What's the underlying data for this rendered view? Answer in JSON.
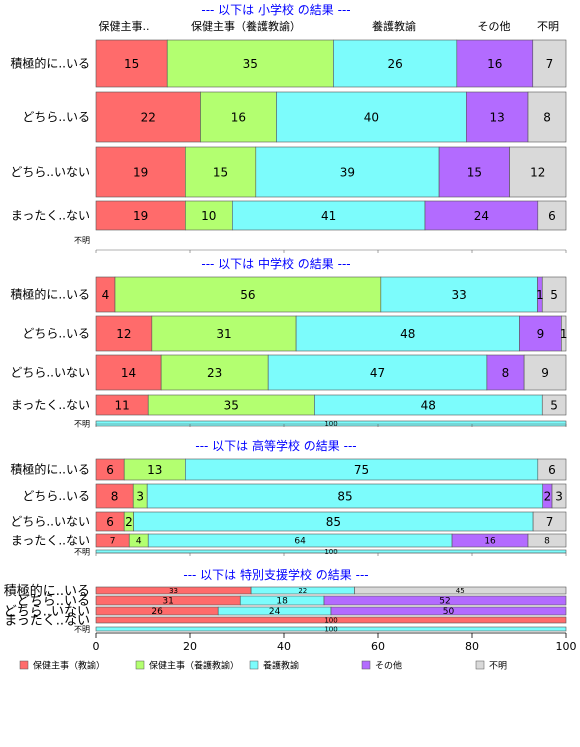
{
  "colors": {
    "background": "#ffffff",
    "title_text": "#0000ff",
    "axis": "#666666",
    "bar_border": "#555555"
  },
  "chart_data": {
    "type": "bar",
    "orientation": "horizontal",
    "stacked": true,
    "xlim": [
      0,
      100
    ],
    "x_ticks": [
      0,
      20,
      40,
      60,
      80,
      100
    ],
    "legend_position": "bottom",
    "series": [
      {
        "name": "保健主事（教諭）",
        "color": "#ff6b6b"
      },
      {
        "name": "保健主事（養護教諭）",
        "color": "#b3ff70"
      },
      {
        "name": "養護教諭",
        "color": "#7cfcfc"
      },
      {
        "name": "その他",
        "color": "#b36bff"
      },
      {
        "name": "不明",
        "color": "#d9d9d9"
      }
    ],
    "column_headers": [
      "保健主事..",
      "保健主事（養護教諭）",
      "養護教諭",
      "その他",
      "不明"
    ],
    "panels": [
      {
        "title": "--- 以下は 小学校 の結果 ---",
        "rows": [
          {
            "label": "積極的に..いる",
            "values": [
              15,
              35,
              26,
              16,
              7
            ],
            "labels": [
              "15",
              "35",
              "26",
              "16",
              "7"
            ]
          },
          {
            "label": "どちら..いる",
            "values": [
              22,
              16,
              40,
              13,
              8
            ],
            "labels": [
              "22",
              "16",
              "40",
              "13",
              "8"
            ]
          },
          {
            "label": "どちら..いない",
            "values": [
              19,
              15,
              39,
              15,
              12
            ],
            "labels": [
              "19",
              "15",
              "39",
              "15",
              "12"
            ]
          },
          {
            "label": "まったく..ない",
            "values": [
              19,
              10,
              41,
              24,
              6
            ],
            "labels": [
              "19",
              "10",
              "41",
              "24",
              "6"
            ]
          },
          {
            "label": "不明",
            "values": [
              0,
              0,
              0,
              0,
              0
            ],
            "labels": [
              "",
              "",
              "",
              "",
              ""
            ]
          }
        ]
      },
      {
        "title": "--- 以下は 中学校 の結果 ---",
        "rows": [
          {
            "label": "積極的に..いる",
            "values": [
              4,
              56,
              33,
              1,
              5
            ],
            "labels": [
              "4",
              "56",
              "33",
              "1",
              "5"
            ]
          },
          {
            "label": "どちら..いる",
            "values": [
              12,
              31,
              48,
              9,
              1
            ],
            "labels": [
              "12",
              "31",
              "48",
              "9",
              "1"
            ]
          },
          {
            "label": "どちら..いない",
            "values": [
              14,
              23,
              47,
              8,
              9
            ],
            "labels": [
              "14",
              "23",
              "47",
              "8",
              "9"
            ]
          },
          {
            "label": "まったく..ない",
            "values": [
              11,
              35,
              48,
              0,
              5
            ],
            "labels": [
              "11",
              "35",
              "48",
              "",
              "5"
            ]
          },
          {
            "label": "不明",
            "values": [
              0,
              0,
              100,
              0,
              0
            ],
            "labels": [
              "",
              "",
              "100",
              "",
              ""
            ]
          }
        ]
      },
      {
        "title": "--- 以下は 高等学校 の結果 ---",
        "rows": [
          {
            "label": "積極的に..いる",
            "values": [
              6,
              13,
              75,
              0,
              6
            ],
            "labels": [
              "6",
              "13",
              "75",
              "",
              "6"
            ]
          },
          {
            "label": "どちら..いる",
            "values": [
              8,
              3,
              85,
              2,
              3
            ],
            "labels": [
              "8",
              "3",
              "85",
              "2",
              "3"
            ]
          },
          {
            "label": "どちら..いない",
            "values": [
              6,
              2,
              85,
              0,
              7
            ],
            "labels": [
              "6",
              "2",
              "85",
              "",
              "7"
            ]
          },
          {
            "label": "まったく..ない",
            "values": [
              7,
              4,
              64,
              16,
              8
            ],
            "labels": [
              "7",
              "4",
              "64",
              "16",
              "8"
            ]
          },
          {
            "label": "不明",
            "values": [
              0,
              0,
              100,
              0,
              0
            ],
            "labels": [
              "",
              "",
              "100",
              "",
              ""
            ]
          }
        ]
      },
      {
        "title": "--- 以下は 特別支援学校 の結果 ---",
        "rows": [
          {
            "label": "積極的に..いる",
            "values": [
              33,
              0,
              22,
              0,
              45
            ],
            "labels": [
              "33",
              "",
              "22",
              "",
              "45"
            ]
          },
          {
            "label": "どちら..いる",
            "values": [
              31,
              0,
              18,
              52,
              0
            ],
            "labels": [
              "31",
              "",
              "18",
              "52",
              ""
            ]
          },
          {
            "label": "どちら..いない",
            "values": [
              26,
              0,
              24,
              50,
              0
            ],
            "labels": [
              "26",
              "",
              "24",
              "50",
              ""
            ]
          },
          {
            "label": "まったく..ない",
            "values": [
              100,
              0,
              0,
              0,
              0
            ],
            "labels": [
              "100",
              "",
              "",
              "",
              ""
            ]
          },
          {
            "label": "不明",
            "values": [
              0,
              0,
              100,
              0,
              0
            ],
            "labels": [
              "",
              "",
              "100",
              "",
              ""
            ]
          }
        ]
      }
    ]
  }
}
